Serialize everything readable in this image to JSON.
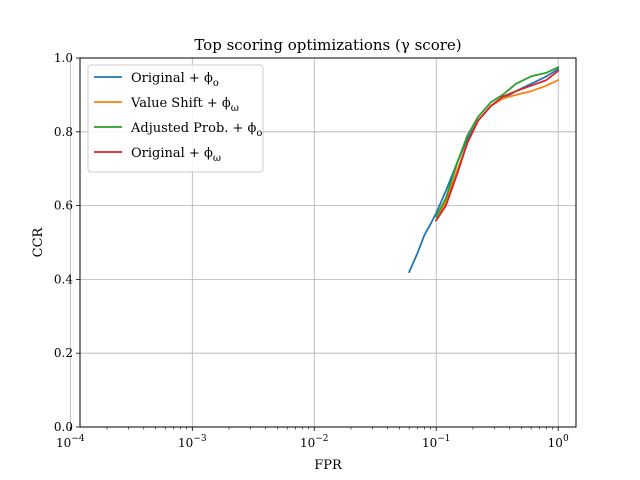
{
  "chart_data": {
    "type": "line",
    "title": "Top scoring optimizations (γ score)",
    "xlabel": "FPR",
    "ylabel": "CCR",
    "x_scale": "log",
    "x_inverted": true,
    "xlim": [
      0.00012,
      1.4
    ],
    "ylim": [
      0.0,
      1.0
    ],
    "grid": true,
    "legend_position": "top-left",
    "x_ticks": [
      {
        "value": 0.0001,
        "label": "10−4",
        "base": "10",
        "exp": "−4"
      },
      {
        "value": 0.001,
        "label": "10−3",
        "base": "10",
        "exp": "−3"
      },
      {
        "value": 0.01,
        "label": "10−2",
        "base": "10",
        "exp": "−2"
      },
      {
        "value": 0.1,
        "label": "10−1",
        "base": "10",
        "exp": "−1"
      },
      {
        "value": 1,
        "label": "100",
        "base": "10",
        "exp": "0"
      }
    ],
    "y_ticks": [
      {
        "value": 0.0,
        "label": "0.0"
      },
      {
        "value": 0.2,
        "label": "0.2"
      },
      {
        "value": 0.4,
        "label": "0.4"
      },
      {
        "value": 0.6,
        "label": "0.6"
      },
      {
        "value": 0.8,
        "label": "0.8"
      },
      {
        "value": 1.0,
        "label": "1.0"
      }
    ],
    "series": [
      {
        "name": "Original + ϕo",
        "legend_base": "Original + ϕ",
        "legend_sub": "o",
        "color": "#1f77b4",
        "x": [
          0.06,
          0.07,
          0.08,
          0.09,
          0.1,
          0.12,
          0.15,
          0.18,
          0.22,
          0.28,
          0.35,
          0.45,
          0.6,
          0.8,
          1.0
        ],
        "y": [
          0.42,
          0.47,
          0.52,
          0.55,
          0.58,
          0.64,
          0.72,
          0.78,
          0.83,
          0.87,
          0.89,
          0.91,
          0.93,
          0.95,
          0.97
        ]
      },
      {
        "name": "Value Shift + ϕω",
        "legend_base": "Value Shift + ϕ",
        "legend_sub": "ω",
        "color": "#ff7f0e",
        "x": [
          0.1,
          0.12,
          0.15,
          0.18,
          0.22,
          0.28,
          0.35,
          0.45,
          0.6,
          0.8,
          1.0
        ],
        "y": [
          0.56,
          0.61,
          0.7,
          0.77,
          0.83,
          0.87,
          0.89,
          0.9,
          0.91,
          0.925,
          0.94
        ]
      },
      {
        "name": "Adjusted Prob. + ϕo",
        "legend_base": "Adjusted Prob. + ϕ",
        "legend_sub": "o",
        "color": "#2ca02c",
        "x": [
          0.1,
          0.12,
          0.15,
          0.18,
          0.22,
          0.28,
          0.35,
          0.45,
          0.6,
          0.8,
          1.0
        ],
        "y": [
          0.57,
          0.62,
          0.72,
          0.79,
          0.84,
          0.88,
          0.9,
          0.93,
          0.95,
          0.96,
          0.975
        ]
      },
      {
        "name": "Original + ϕω",
        "legend_base": "Original + ϕ",
        "legend_sub": "ω",
        "color": "#d62728",
        "x": [
          0.1,
          0.12,
          0.15,
          0.18,
          0.22,
          0.28,
          0.35,
          0.45,
          0.6,
          0.8,
          1.0
        ],
        "y": [
          0.56,
          0.6,
          0.69,
          0.77,
          0.83,
          0.87,
          0.895,
          0.91,
          0.925,
          0.94,
          0.965
        ]
      }
    ]
  }
}
